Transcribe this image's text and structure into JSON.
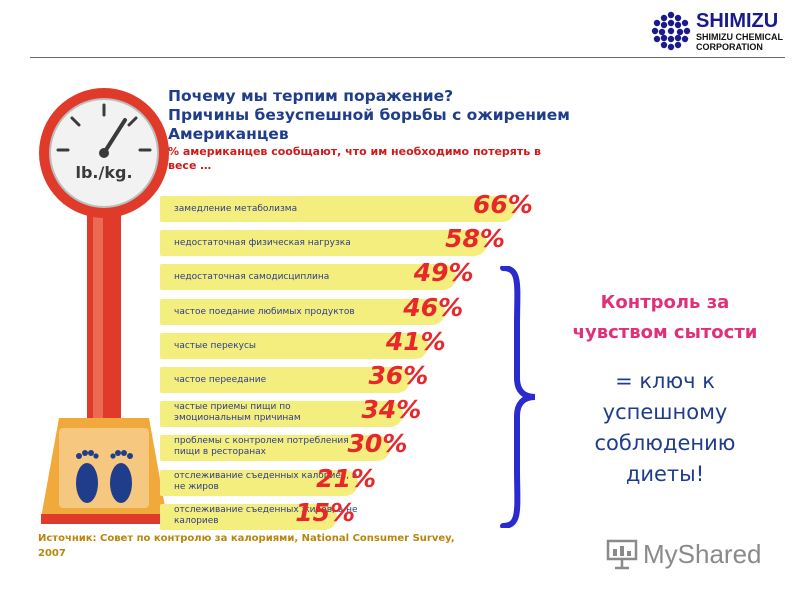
{
  "header": {
    "logo_name": "SHIMIZU",
    "logo_sub1": "SHIMIZU CHEMICAL",
    "logo_sub2": "CORPORATION"
  },
  "scale": {
    "dial_label": "lb./kg."
  },
  "title": {
    "line1": "Почему мы терпим поражение?",
    "line2": "Причины безуспешной борьбы с ожирением",
    "line3": "Американцев",
    "subtitle": "% американцев сообщают, что им  необходимо потерять в весе …"
  },
  "chart_data": {
    "type": "bar",
    "orientation": "horizontal",
    "categories": [
      "замедление метаболизма",
      "недостаточная физическая нагрузка",
      "недостаточная самодисциплина",
      "частое поедание любимых продуктов",
      "частые перекусы",
      "частое переедание",
      "частые приемы пищи по эмоциональным причинам",
      "проблемы с контролем потребления пищи в ресторанах",
      "отслеживание съеденных калориев, а не жиров",
      "отслеживание съеденных жиров, а не калориев"
    ],
    "values": [
      66,
      58,
      49,
      46,
      41,
      36,
      34,
      30,
      21,
      15
    ],
    "value_labels": [
      "66%",
      "58%",
      "49%",
      "46%",
      "41%",
      "36%",
      "34%",
      "30%",
      "21%",
      "15%"
    ],
    "unit": "%",
    "title": "Почему мы терпим поражение?",
    "xlim": [
      0,
      66
    ]
  },
  "callout": {
    "control_line1": "Контроль за",
    "control_line2": "чувством сытости",
    "key_line1": "= ключ к",
    "key_line2": "успешному",
    "key_line3": "соблюдению",
    "key_line4": "диеты!"
  },
  "source": "Источник: Совет по контролю за калориями, National Consumer Survey, 2007",
  "watermark": "MyShared",
  "colors": {
    "bar_fill": "#f4ee7e",
    "value_red": "#e8272a",
    "title_blue": "#1f3d8a",
    "callout_pink": "#e0307a",
    "brace_blue": "#2a2acf",
    "scale_red": "#e03a2a",
    "scale_orange": "#f2a93b"
  }
}
